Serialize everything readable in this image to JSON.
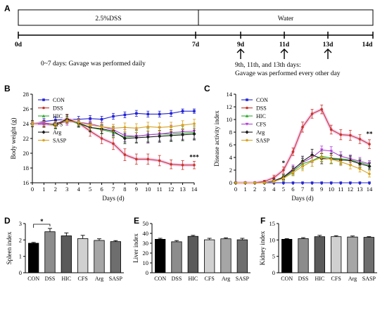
{
  "panel_letters": {
    "A": "A",
    "B": "B",
    "C": "C",
    "D": "D",
    "E": "E",
    "F": "F"
  },
  "timeline": {
    "phase1_label": "2.5%DSS",
    "phase2_label": "Water",
    "day_labels": [
      "0d",
      "7d",
      "9d",
      "11d",
      "13d",
      "14d"
    ],
    "note_left": "0~7 days: Gavage was performed daily",
    "note_right_1": "9th, 11th, and 13th days:",
    "note_right_2": "Gavage was performed every other day"
  },
  "colors": {
    "CON": "#2323d6",
    "DSS": "#c8342c",
    "HIC": "#2ea82e",
    "CFS": "#b13fd6",
    "Arg": "#1c1c1c",
    "SASP": "#d8a21e",
    "glow": "#f3c6ef"
  },
  "chart_data": [
    {
      "id": "B",
      "type": "line",
      "xlabel": "Days (d)",
      "ylabel": "Body weight (g)",
      "xlim": [
        0,
        14
      ],
      "ylim": [
        16,
        28
      ],
      "xticks": [
        0,
        1,
        2,
        3,
        4,
        5,
        6,
        7,
        8,
        9,
        10,
        11,
        12,
        13,
        14
      ],
      "yticks": [
        16,
        18,
        20,
        22,
        24,
        26,
        28
      ],
      "legend_position": "top-left",
      "annotations": [
        {
          "text": "***",
          "x": 14,
          "y": 19.2
        }
      ],
      "x": [
        0,
        1,
        2,
        3,
        4,
        5,
        6,
        7,
        8,
        9,
        10,
        11,
        12,
        13,
        14
      ],
      "series": [
        {
          "name": "CON",
          "values": [
            24.0,
            24.3,
            24.5,
            24.6,
            24.6,
            24.7,
            24.6,
            25.0,
            25.2,
            25.4,
            25.3,
            25.3,
            25.4,
            25.7,
            25.7
          ],
          "err": [
            0.3,
            0.4,
            0.4,
            0.4,
            0.4,
            0.4,
            0.4,
            0.4,
            0.4,
            0.4,
            0.4,
            0.4,
            0.4,
            0.3,
            0.3
          ]
        },
        {
          "name": "DSS",
          "values": [
            24.0,
            24.0,
            23.8,
            24.7,
            24.1,
            23.0,
            22.0,
            21.3,
            19.8,
            19.2,
            19.2,
            19.0,
            18.5,
            18.4,
            18.4
          ],
          "err": [
            0.4,
            0.5,
            0.5,
            0.6,
            0.5,
            0.7,
            0.7,
            0.8,
            0.8,
            0.7,
            0.7,
            0.7,
            0.6,
            0.6,
            0.5
          ]
        },
        {
          "name": "HIC",
          "values": [
            24.0,
            24.0,
            23.8,
            24.5,
            24.0,
            23.5,
            23.2,
            22.8,
            22.2,
            22.3,
            22.5,
            22.6,
            22.6,
            22.7,
            22.8
          ],
          "err": [
            0.4,
            0.4,
            0.5,
            0.5,
            0.5,
            0.5,
            0.6,
            0.6,
            0.7,
            0.8,
            0.9,
            0.9,
            0.9,
            0.9,
            0.9
          ]
        },
        {
          "name": "CFS",
          "values": [
            24.0,
            24.1,
            23.9,
            24.3,
            24.2,
            24.0,
            23.6,
            23.2,
            22.4,
            22.3,
            22.5,
            22.6,
            22.8,
            22.9,
            23.0
          ],
          "err": [
            0.4,
            0.4,
            0.5,
            0.5,
            0.5,
            0.5,
            0.6,
            0.7,
            0.8,
            0.9,
            1.0,
            1.0,
            1.0,
            1.0,
            1.0
          ]
        },
        {
          "name": "Arg",
          "values": [
            24.0,
            24.0,
            23.9,
            24.6,
            24.1,
            23.5,
            23.3,
            23.0,
            22.0,
            22.1,
            22.2,
            22.3,
            22.4,
            22.5,
            22.6
          ],
          "err": [
            0.4,
            0.4,
            0.5,
            0.6,
            0.5,
            0.6,
            0.6,
            0.6,
            0.7,
            0.7,
            0.8,
            0.8,
            0.8,
            0.8,
            0.8
          ]
        },
        {
          "name": "SASP",
          "values": [
            24.0,
            24.0,
            23.9,
            24.4,
            24.2,
            23.8,
            23.6,
            23.4,
            23.5,
            23.4,
            23.6,
            23.5,
            23.6,
            23.8,
            24.0
          ],
          "err": [
            0.3,
            0.3,
            0.4,
            0.4,
            0.4,
            0.4,
            0.5,
            0.5,
            0.6,
            0.6,
            0.6,
            0.6,
            0.6,
            0.6,
            0.6
          ]
        }
      ]
    },
    {
      "id": "C",
      "type": "line",
      "xlabel": "Days (d)",
      "ylabel": "Disease activity index",
      "xlim": [
        0,
        14
      ],
      "ylim": [
        0,
        14
      ],
      "xticks": [
        0,
        1,
        2,
        3,
        4,
        5,
        6,
        7,
        8,
        9,
        10,
        11,
        12,
        13,
        14
      ],
      "yticks": [
        0,
        2,
        4,
        6,
        8,
        10,
        12,
        14
      ],
      "legend_position": "top-left",
      "annotations": [
        {
          "text": "*",
          "x": 5,
          "y": 2.8
        },
        {
          "text": "**",
          "x": 14,
          "y": 7.4
        }
      ],
      "x": [
        0,
        1,
        2,
        3,
        4,
        5,
        6,
        7,
        8,
        9,
        10,
        11,
        12,
        13,
        14
      ],
      "series": [
        {
          "name": "CON",
          "values": [
            0,
            0,
            0,
            0,
            0,
            0,
            0,
            0,
            0,
            0,
            0,
            0,
            0,
            0,
            0
          ],
          "err": [
            0,
            0,
            0,
            0,
            0,
            0,
            0,
            0,
            0,
            0,
            0,
            0,
            0,
            0,
            0
          ]
        },
        {
          "name": "DSS",
          "values": [
            0,
            0,
            0,
            0.2,
            0.8,
            2.0,
            4.9,
            8.8,
            10.9,
            11.6,
            8.4,
            7.6,
            7.5,
            6.9,
            6.1
          ],
          "err": [
            0,
            0,
            0,
            0.2,
            0.4,
            0.5,
            0.6,
            0.8,
            0.7,
            0.7,
            0.7,
            0.8,
            0.8,
            0.7,
            0.7
          ]
        },
        {
          "name": "HIC",
          "values": [
            0,
            0,
            0,
            0,
            0.3,
            0.8,
            1.8,
            3.0,
            3.5,
            4.2,
            3.9,
            3.8,
            3.6,
            3.2,
            2.8
          ],
          "err": [
            0,
            0,
            0,
            0,
            0.3,
            0.4,
            0.6,
            0.8,
            0.9,
            0.8,
            0.8,
            0.7,
            0.7,
            0.6,
            0.5
          ]
        },
        {
          "name": "CFS",
          "values": [
            0,
            0,
            0,
            0,
            0.3,
            0.9,
            2.2,
            3.2,
            4.0,
            5.2,
            5.0,
            4.2,
            3.8,
            3.4,
            3.0
          ],
          "err": [
            0,
            0,
            0,
            0,
            0.3,
            0.4,
            0.6,
            0.7,
            0.8,
            0.6,
            0.7,
            0.7,
            0.6,
            0.6,
            0.5
          ]
        },
        {
          "name": "Arg",
          "values": [
            0,
            0,
            0,
            0,
            0.3,
            0.9,
            2.0,
            3.4,
            4.4,
            3.8,
            3.8,
            3.6,
            3.5,
            3.0,
            2.6
          ],
          "err": [
            0,
            0,
            0,
            0,
            0.3,
            0.4,
            0.6,
            0.8,
            0.9,
            0.8,
            0.8,
            0.7,
            0.7,
            0.6,
            0.5
          ]
        },
        {
          "name": "SASP",
          "values": [
            0,
            0,
            0,
            0,
            0.2,
            0.7,
            1.6,
            2.6,
            3.4,
            4.0,
            3.7,
            3.3,
            2.8,
            2.2,
            1.4
          ],
          "err": [
            0,
            0,
            0,
            0,
            0.2,
            0.4,
            0.5,
            0.7,
            0.8,
            0.7,
            0.7,
            0.6,
            0.6,
            0.5,
            0.5
          ]
        }
      ]
    },
    {
      "id": "D",
      "type": "bar",
      "ylabel": "Spleen index",
      "categories": [
        "CON",
        "DSS",
        "HIC",
        "CFS",
        "Arg",
        "SASP"
      ],
      "values": [
        1.8,
        2.5,
        2.25,
        2.08,
        1.97,
        1.9
      ],
      "err": [
        0.05,
        0.2,
        0.18,
        0.2,
        0.1,
        0.06
      ],
      "bar_colors": [
        "#000000",
        "#8c8c8c",
        "#5a5a5a",
        "#d0d0d0",
        "#a6a6a6",
        "#6e6e6e"
      ],
      "ylim": [
        0,
        3
      ],
      "yticks": [
        0,
        1,
        2,
        3
      ],
      "annotations": [
        {
          "text": "*",
          "between": [
            "CON",
            "DSS"
          ]
        }
      ]
    },
    {
      "id": "E",
      "type": "bar",
      "ylabel": "Liver index",
      "categories": [
        "CON",
        "DSS",
        "HIC",
        "CFS",
        "Arg",
        "SASP"
      ],
      "values": [
        34,
        31.5,
        37,
        33.5,
        34.5,
        33.5
      ],
      "err": [
        1.0,
        1.2,
        1.0,
        1.5,
        1.0,
        1.5
      ],
      "bar_colors": [
        "#000000",
        "#8c8c8c",
        "#5a5a5a",
        "#d0d0d0",
        "#a6a6a6",
        "#6e6e6e"
      ],
      "ylim": [
        0,
        50
      ],
      "yticks": [
        0,
        10,
        20,
        30,
        40,
        50
      ]
    },
    {
      "id": "F",
      "type": "bar",
      "ylabel": "Kidney index",
      "categories": [
        "CON",
        "DSS",
        "HIC",
        "CFS",
        "Arg",
        "SASP"
      ],
      "values": [
        10.2,
        10.4,
        11.0,
        11.0,
        10.9,
        10.8
      ],
      "err": [
        0.2,
        0.3,
        0.4,
        0.3,
        0.3,
        0.2
      ],
      "bar_colors": [
        "#000000",
        "#8c8c8c",
        "#5a5a5a",
        "#d0d0d0",
        "#a6a6a6",
        "#6e6e6e"
      ],
      "ylim": [
        0,
        15
      ],
      "yticks": [
        0,
        5,
        10,
        15
      ]
    }
  ]
}
